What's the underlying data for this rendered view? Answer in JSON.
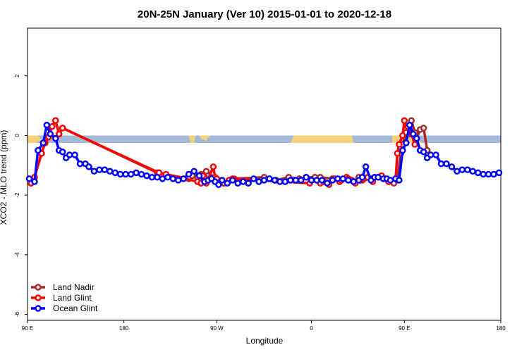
{
  "chart_data": {
    "type": "line",
    "title": "20N-25N January (Ver 10)   2015-01-01 to 2020-12-18",
    "xlabel": "Longitude",
    "ylabel": "XCO2 - MLO trend (ppm)",
    "xlim": [
      -90,
      180
    ],
    "ylim": [
      -6.2,
      3.6
    ],
    "x_ticks": [
      {
        "value": -90,
        "label": "90 E"
      },
      {
        "value": -35,
        "label": "180"
      },
      {
        "value": 18,
        "label": "90 W"
      },
      {
        "value": 72,
        "label": "0"
      },
      {
        "value": 125,
        "label": "90 E"
      },
      {
        "value": 180,
        "label": "180"
      }
    ],
    "y_ticks": [
      {
        "value": 2,
        "label": "2"
      },
      {
        "value": 0,
        "label": "0"
      },
      {
        "value": -2,
        "label": "-2"
      },
      {
        "value": -4,
        "label": "-4"
      },
      {
        "value": -6,
        "label": "-6"
      }
    ],
    "legend_position": "bottom-left",
    "grid": false,
    "map_band": {
      "y_range": [
        -0.25,
        0.0
      ],
      "ocean_color": "#a4b9d6",
      "land_color": "#f5d37a"
    },
    "series": [
      {
        "name": "Land Nadir",
        "color": "#a52a2a",
        "x": [
          -88,
          -86,
          -82,
          -80,
          -78,
          -76,
          -74,
          -72,
          -70,
          -16,
          2,
          4,
          7,
          9,
          11,
          12,
          20,
          22,
          25,
          28,
          45,
          52,
          59,
          65,
          69,
          74,
          77,
          84,
          97,
          99,
          101,
          106,
          111,
          116,
          119,
          121,
          123,
          124,
          126,
          127,
          129,
          131,
          132,
          134,
          136,
          138
        ],
        "y": [
          -1.6,
          -1.4,
          -0.6,
          -0.25,
          -0.05,
          0.3,
          0.5,
          0.05,
          0.25,
          -1.25,
          -1.45,
          -1.35,
          -1.4,
          -1.3,
          -1.4,
          -1.2,
          -1.55,
          -1.6,
          -1.5,
          -1.45,
          -1.4,
          -1.5,
          -1.4,
          -1.45,
          -1.4,
          -1.4,
          -1.4,
          -1.45,
          -1.55,
          -1.4,
          -1.5,
          -1.45,
          -1.4,
          -1.55,
          -1.6,
          -1.5,
          -0.6,
          -0.3,
          0.1,
          0.3,
          0.5,
          0.1,
          -0.1,
          0.2,
          0.25,
          -0.5
        ]
      },
      {
        "name": "Land Glint",
        "color": "#ff0000",
        "x": [
          -88,
          -86,
          -82,
          -80,
          -78,
          -76,
          -74,
          -72,
          -70,
          -15,
          -11,
          7,
          9,
          10,
          12,
          16,
          17,
          18,
          20,
          22,
          25,
          27,
          71,
          75,
          77,
          79,
          82,
          85,
          88,
          89,
          92,
          93,
          95,
          97,
          100,
          102,
          104,
          106,
          107,
          110,
          112,
          114,
          116,
          120,
          121,
          122,
          124,
          125,
          127,
          129,
          131
        ],
        "y": [
          -1.6,
          -1.4,
          -0.6,
          -0.25,
          -0.05,
          0.3,
          0.5,
          0.05,
          0.25,
          -1.25,
          -1.3,
          -1.55,
          -1.6,
          -1.35,
          -1.6,
          -1.05,
          -1.4,
          -1.45,
          -1.55,
          -1.6,
          -1.5,
          -1.45,
          -1.6,
          -1.5,
          -1.6,
          -1.55,
          -1.65,
          -1.45,
          -1.55,
          -1.5,
          -1.4,
          -1.45,
          -1.5,
          -1.6,
          -1.5,
          -1.45,
          -1.4,
          -1.5,
          -1.55,
          -1.4,
          -1.35,
          -1.45,
          -1.55,
          -1.45,
          -0.6,
          -0.3,
          0.0,
          0.5,
          0.3,
          0.05,
          -0.3
        ]
      },
      {
        "name": "Ocean Glint",
        "color": "#0000ff",
        "x": [
          -89,
          -86,
          -84,
          -81,
          -79,
          -77,
          -74,
          -72,
          -70,
          -68,
          -66,
          -63,
          -60,
          -57,
          -55,
          -52,
          -49,
          -46,
          -43,
          -40,
          -37,
          -34,
          -31,
          -28,
          -25,
          -22,
          -19,
          -16,
          -13,
          -10,
          -7,
          -4,
          -1,
          2,
          5,
          8,
          11,
          13,
          15,
          17,
          19,
          21,
          24,
          27,
          30,
          33,
          36,
          39,
          42,
          45,
          48,
          51,
          54,
          57,
          60,
          63,
          66,
          69,
          72,
          75,
          78,
          81,
          84,
          87,
          90,
          93,
          96,
          99,
          101,
          103,
          106,
          108,
          110,
          113,
          115,
          117,
          120,
          122,
          124,
          126,
          128,
          130,
          132,
          134,
          136,
          138,
          140,
          143,
          146,
          149,
          152,
          155,
          158,
          161,
          164,
          167,
          170,
          173,
          176,
          179
        ],
        "y": [
          -1.45,
          -1.55,
          -0.5,
          -0.25,
          0.35,
          0.05,
          -0.1,
          -0.5,
          -0.55,
          -0.75,
          -0.65,
          -0.65,
          -0.95,
          -0.95,
          -1.05,
          -1.2,
          -1.15,
          -1.15,
          -1.2,
          -1.25,
          -1.3,
          -1.3,
          -1.3,
          -1.25,
          -1.3,
          -1.35,
          -1.4,
          -1.4,
          -1.45,
          -1.4,
          -1.45,
          -1.5,
          -1.45,
          -1.3,
          -1.2,
          -1.35,
          -1.55,
          -1.5,
          -1.45,
          -1.55,
          -1.65,
          -1.5,
          -1.6,
          -1.5,
          -1.6,
          -1.55,
          -1.6,
          -1.45,
          -1.55,
          -1.5,
          -1.45,
          -1.5,
          -1.55,
          -1.55,
          -1.5,
          -1.5,
          -1.5,
          -1.4,
          -1.5,
          -1.5,
          -1.5,
          -1.6,
          -1.5,
          -1.45,
          -1.45,
          -1.5,
          -1.55,
          -1.5,
          -1.4,
          -1.05,
          -1.5,
          -1.4,
          -1.4,
          -1.45,
          -1.45,
          -1.5,
          -1.45,
          -1.5,
          -0.5,
          -0.25,
          0.35,
          0.05,
          -0.1,
          -0.5,
          -0.55,
          -0.75,
          -0.65,
          -0.65,
          -0.95,
          -0.95,
          -1.05,
          -1.2,
          -1.15,
          -1.15,
          -1.2,
          -1.25,
          -1.3,
          -1.3,
          -1.3,
          -1.25
        ]
      }
    ]
  }
}
